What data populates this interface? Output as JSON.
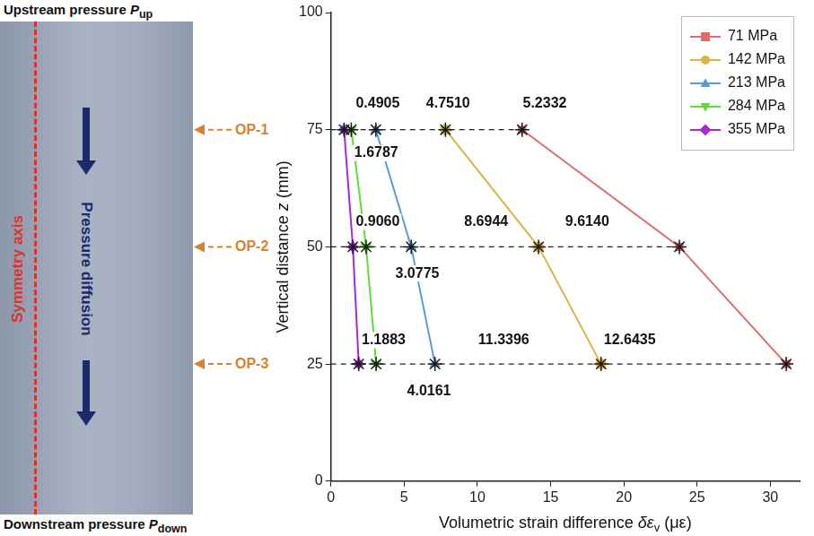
{
  "diagram": {
    "top": [
      "Upstream pressure ",
      {
        "i": "P"
      },
      {
        "sub": "up"
      }
    ],
    "bottom": [
      "Downstream pressure ",
      {
        "i": "P"
      },
      {
        "sub": "down"
      }
    ],
    "axis_label": "Symmetry axis",
    "flow_label": "Pressure diffusion",
    "observation_points": [
      {
        "label": "OP-1",
        "z": 75
      },
      {
        "label": "OP-2",
        "z": 50
      },
      {
        "label": "OP-3",
        "z": 25
      }
    ]
  },
  "chart_data": {
    "type": "line",
    "xlabel": [
      "Volumetric strain difference ",
      {
        "i": "δε"
      },
      {
        "sub": "v"
      },
      " (με)"
    ],
    "ylabel": [
      "Vertical distance ",
      {
        "i": "z"
      },
      " (mm)"
    ],
    "xlim": [
      0,
      32
    ],
    "xticks": [
      0,
      5,
      10,
      15,
      20,
      25,
      30
    ],
    "ylim": [
      0,
      100
    ],
    "yticks": [
      0,
      25,
      50,
      75,
      100
    ],
    "grid": false,
    "legend": "upper right",
    "series": [
      {
        "name": "71 MPa",
        "color": "#e06b6b",
        "marker": "square",
        "x": [
          13.0534,
          23.7919,
          31.0875
        ],
        "y": [
          75,
          50,
          25
        ]
      },
      {
        "name": "142 MPa",
        "color": "#dcb345",
        "marker": "circle",
        "x": [
          7.8202,
          14.1779,
          18.444
        ],
        "y": [
          75,
          50,
          25
        ]
      },
      {
        "name": "213 MPa",
        "color": "#5b9bd5",
        "marker": "triangle",
        "x": [
          3.0692,
          5.4835,
          7.1044
        ],
        "y": [
          75,
          50,
          25
        ]
      },
      {
        "name": "284 MPa",
        "color": "#5ddc3a",
        "marker": "triangle-down",
        "x": [
          1.3905,
          2.406,
          3.0883
        ],
        "y": [
          75,
          50,
          25
        ]
      },
      {
        "name": "355 MPa",
        "color": "#a52bd6",
        "marker": "diamond",
        "x": [
          0.9,
          1.5,
          1.9
        ],
        "y": [
          75,
          50,
          25
        ]
      }
    ],
    "annotations": [
      {
        "text": "0.4905",
        "x": 3.2,
        "y": 80.5
      },
      {
        "text": "4.7510",
        "x": 8.0,
        "y": 80.5
      },
      {
        "text": "5.2332",
        "x": 14.6,
        "y": 80.5
      },
      {
        "text": "1.6787",
        "x": 3.1,
        "y": 70
      },
      {
        "text": "0.9060",
        "x": 3.2,
        "y": 55.3
      },
      {
        "text": "8.6944",
        "x": 10.6,
        "y": 55.3
      },
      {
        "text": "9.6140",
        "x": 17.5,
        "y": 55.3
      },
      {
        "text": "3.0775",
        "x": 5.9,
        "y": 44.3
      },
      {
        "text": "1.1883",
        "x": 3.6,
        "y": 30.1
      },
      {
        "text": "11.3396",
        "x": 11.8,
        "y": 30.1
      },
      {
        "text": "12.6435",
        "x": 20.4,
        "y": 30.1
      },
      {
        "text": "4.0161",
        "x": 6.7,
        "y": 19.2
      }
    ]
  }
}
